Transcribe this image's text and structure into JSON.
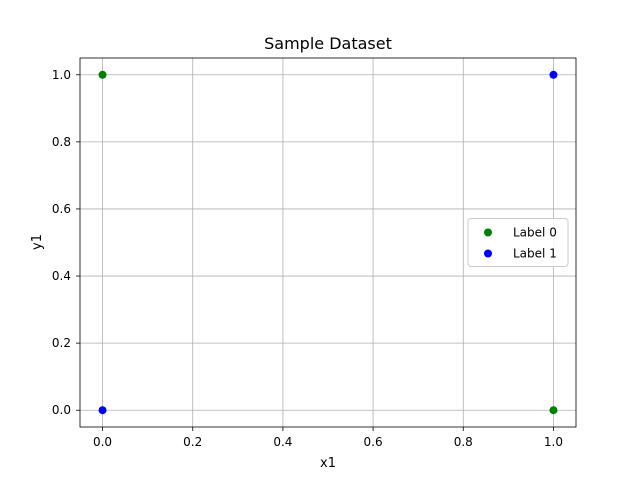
{
  "chart_data": {
    "type": "scatter",
    "title": "Sample Dataset",
    "xlabel": "x1",
    "ylabel": "y1",
    "xlim": [
      -0.05,
      1.05
    ],
    "ylim": [
      -0.05,
      1.05
    ],
    "xticks": [
      0.0,
      0.2,
      0.4,
      0.6,
      0.8,
      1.0
    ],
    "yticks": [
      0.0,
      0.2,
      0.4,
      0.6,
      0.8,
      1.0
    ],
    "xtick_labels": [
      "0.0",
      "0.2",
      "0.4",
      "0.6",
      "0.8",
      "1.0"
    ],
    "ytick_labels": [
      "0.0",
      "0.2",
      "0.4",
      "0.6",
      "0.8",
      "1.0"
    ],
    "grid": true,
    "legend_position": "center-right",
    "series": [
      {
        "name": "Label 0",
        "color": "#008000",
        "points": [
          [
            0,
            1
          ],
          [
            1,
            0
          ]
        ]
      },
      {
        "name": "Label 1",
        "color": "#0000ff",
        "points": [
          [
            0,
            0
          ],
          [
            1,
            1
          ]
        ]
      }
    ]
  }
}
